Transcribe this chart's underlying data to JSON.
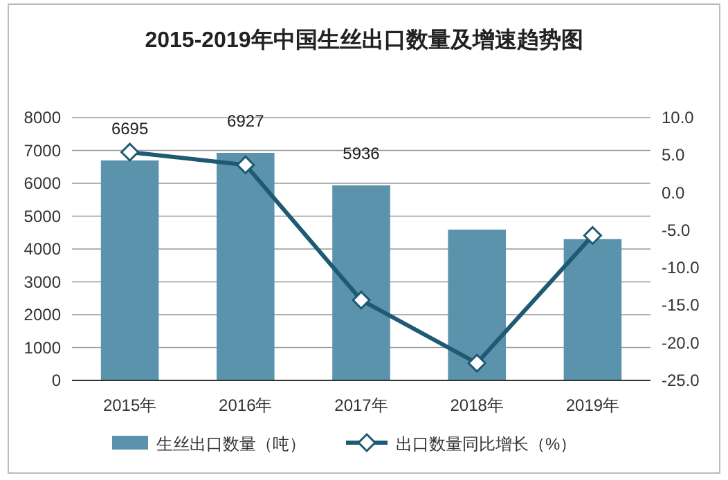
{
  "chart_data": {
    "type": "bar",
    "title": "2015-2019年中国生丝出口数量及增速趋势图",
    "categories": [
      "2015年",
      "2016年",
      "2017年",
      "2018年",
      "2019年"
    ],
    "series": [
      {
        "name": "生丝出口数量（吨）",
        "color": "#5b93ad",
        "values": [
          6695,
          6927,
          5936,
          4590,
          4300
        ],
        "value_labels": [
          "6695",
          "6927",
          "5936",
          null,
          null
        ]
      },
      {
        "name": "出口数量同比增长（%）",
        "type": "line",
        "axis": "y2",
        "color": "#1f5a73",
        "marker": "diamond",
        "values": [
          5.4,
          3.7,
          -14.3,
          -22.7,
          -5.7
        ]
      }
    ],
    "ylim": [
      0,
      8000
    ],
    "yticks": [
      0,
      1000,
      2000,
      3000,
      4000,
      5000,
      6000,
      7000,
      8000
    ],
    "y2lim": [
      -25,
      10
    ],
    "y2ticks": [
      {
        "value": 10,
        "label": "10.0"
      },
      {
        "value": 5,
        "label": "5.0"
      },
      {
        "value": 0,
        "label": "0.0"
      },
      {
        "value": -5,
        "label": "-5.0"
      },
      {
        "value": -10,
        "label": "-10.0"
      },
      {
        "value": -15,
        "label": "-15.0"
      },
      {
        "value": -20,
        "label": "-20.0"
      },
      {
        "value": -25,
        "label": "-25.0"
      }
    ],
    "grid": "y",
    "legend": "bottom"
  }
}
